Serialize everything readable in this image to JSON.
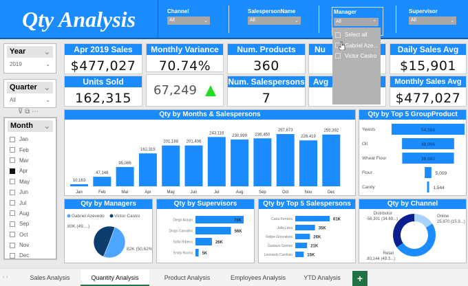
{
  "header": {
    "title": "Qty Analysis",
    "slicers": [
      {
        "label": "Channel",
        "value": "All"
      },
      {
        "label": "SalespersonName",
        "value": "All"
      },
      {
        "label": "Manager",
        "value": "All"
      },
      {
        "label": "Supervisor",
        "value": "All"
      }
    ],
    "manager_dropdown": [
      "Select all",
      "Gabriel Aze...",
      "Victor Castro"
    ]
  },
  "left": {
    "year": {
      "label": "Year",
      "value": "2019"
    },
    "quarter": {
      "label": "Quarter",
      "value": "All"
    },
    "month": {
      "label": "Month",
      "items": [
        "Jan",
        "Feb",
        "Mar",
        "Apr",
        "May",
        "Jun",
        "Jul",
        "Aug",
        "Sep",
        "Oct",
        "Nov",
        "Dec"
      ],
      "selected": "Apr"
    }
  },
  "cards": {
    "apr_sales": {
      "label": "Apr 2019 Sales",
      "value": "$477,027"
    },
    "units_sold": {
      "label": "Units Sold",
      "value": "162,315"
    },
    "monthly_variance": {
      "label": "Monthly Variance",
      "value": "70.74%"
    },
    "variance_abs": {
      "value": "67,249",
      "trend": "up"
    },
    "num_products": {
      "label": "Num. Products",
      "value": "360"
    },
    "num_salespersons": {
      "label": "Num. Salespersons",
      "value": "7"
    },
    "hidden1": {
      "label": "Nu"
    },
    "hidden2": {
      "label": "Avg"
    },
    "daily_avg": {
      "label": "Daily Sales Avg",
      "value": "$15,901"
    },
    "monthly_avg": {
      "label": "Monthly Sales Avg",
      "value": "$477,027"
    }
  },
  "chart_data": [
    {
      "type": "bar",
      "title": "Qty by Months & Salespersons",
      "categories": [
        "Jan",
        "Feb",
        "Mar",
        "Apr",
        "May",
        "Jun",
        "Jul",
        "Aug",
        "Sep",
        "Oct",
        "Nov",
        "Dec"
      ],
      "values": [
        10163,
        47148,
        95066,
        162315,
        201188,
        201406,
        243116,
        230999,
        236460,
        257673,
        226419,
        255392
      ],
      "labels": [
        "10,163",
        "47,148",
        "95,066",
        "162,315",
        "201,188",
        "201,406",
        "243,116",
        "230,999",
        "236,460",
        "257,673",
        "226,419",
        "255,392"
      ],
      "color": "#1a8cff"
    },
    {
      "type": "bar",
      "title": "Qty by Top 5 GroupProduct",
      "orientation": "funnel",
      "categories": [
        "Yeasts",
        "Oil",
        "Wheat Flour",
        "Flour",
        "Candy"
      ],
      "values": [
        54568,
        38996,
        38692,
        5009,
        1544
      ],
      "labels": [
        "54,568",
        "38,996",
        "38,692",
        "5,009",
        "1,544"
      ]
    },
    {
      "type": "pie",
      "title": "Qty by Managers",
      "categories": [
        "Gabriel Azevedo",
        "Victor Castro"
      ],
      "values": [
        82,
        80
      ],
      "percent": [
        50.62,
        49.38
      ],
      "labels": [
        "82K (50.62%)",
        "80K (49....)"
      ],
      "colors": [
        "#4da6ff",
        "#0d3d6e"
      ],
      "legend": "top"
    },
    {
      "type": "bar",
      "title": "Qty by Supervisors",
      "orientation": "horizontal",
      "categories": [
        "Diego Araujo",
        "Diogo Carvalho",
        "Sofia Ribeiro",
        "Emily Rocha"
      ],
      "values": [
        76,
        56,
        26,
        5
      ],
      "labels": [
        "76K",
        "56K",
        "26K",
        "5K"
      ]
    },
    {
      "type": "bar",
      "title": "Qty by Top 5 Salespersons",
      "orientation": "horizontal",
      "categories": [
        "Carla Ferreira",
        "Julia Lima",
        "Felipe Goncalves",
        "Gustavo Gomes",
        "Leonardo Cardoso"
      ],
      "values": [
        61,
        35,
        26,
        21,
        15
      ],
      "labels": [
        "61K",
        "35K",
        "26K",
        "21K",
        "15K"
      ]
    },
    {
      "type": "pie",
      "donut": true,
      "title": "Qty by Channel",
      "categories": [
        "Online",
        "Retail",
        "Distributor"
      ],
      "values": [
        25870,
        80144,
        56301
      ],
      "labels": [
        "25,870 (15.9...)",
        "80,144 (49.3...)",
        "56,301 (34.69...)"
      ],
      "colors": [
        "#a9d3ff",
        "#1a8cff",
        "#0b1f8f"
      ]
    }
  ],
  "tabs": {
    "items": [
      "Sales Analysis",
      "Quantity Analysis",
      "Product Analysis",
      "Employees Analysis",
      "YTD Analysis"
    ],
    "active": "Quantity Analysis",
    "add": "+"
  }
}
